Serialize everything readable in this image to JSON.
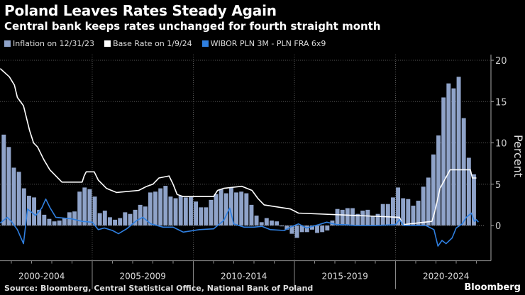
{
  "header": {
    "title": "Poland Leaves Rates Steady Again",
    "subtitle": "Central bank keeps rates unchanged for fourth straight month"
  },
  "footer": {
    "source": "Source: Bloomberg, Central Statistical Office, National Bank of Poland",
    "logo": "Bloomberg"
  },
  "chart_data": {
    "type": "bar+line",
    "ylabel": "Percent",
    "ylim": [
      -4,
      20
    ],
    "yticks": [
      0,
      5,
      10,
      15,
      20
    ],
    "xlim": [
      2000,
      2025
    ],
    "x_categories": [
      "2000-2004",
      "2005-2009",
      "2010-2014",
      "2015-2019",
      "2020-2024"
    ],
    "grid": true,
    "legend_placement": "top-left",
    "series": [
      {
        "name": "Inflation on 12/31/23",
        "kind": "bar",
        "color": "#8fa3c9",
        "x_start": 2000.5,
        "step": 0.25,
        "values": [
          11.0,
          9.5,
          7.0,
          6.5,
          4.5,
          3.6,
          3.4,
          1.9,
          1.3,
          0.8,
          0.5,
          0.6,
          0.9,
          1.6,
          1.7,
          4.1,
          4.6,
          4.4,
          3.5,
          1.5,
          1.8,
          1.0,
          0.7,
          0.9,
          1.6,
          1.4,
          1.9,
          2.5,
          2.3,
          4.0,
          4.1,
          4.5,
          4.8,
          3.5,
          3.3,
          3.6,
          3.4,
          3.5,
          2.9,
          2.2,
          2.2,
          3.1,
          3.8,
          4.4,
          3.9,
          4.6,
          4.0,
          4.1,
          3.9,
          2.5,
          1.2,
          0.4,
          0.9,
          0.6,
          0.5,
          -0.1,
          -0.5,
          -1.0,
          -1.5,
          -0.8,
          -0.8,
          -0.5,
          -0.9,
          -0.8,
          -0.6,
          0.6,
          2.0,
          1.9,
          2.1,
          2.1,
          1.4,
          1.8,
          1.9,
          1.1,
          1.4,
          2.6,
          2.6,
          3.4,
          4.6,
          3.3,
          3.2,
          2.4,
          3.0,
          4.7,
          5.8,
          8.6,
          10.9,
          15.5,
          17.2,
          16.6,
          18.0,
          13.0,
          8.2,
          6.2
        ]
      },
      {
        "name": "Base Rate on 1/9/24",
        "kind": "line",
        "color": "#ffffff",
        "points": [
          [
            2000.45,
            19
          ],
          [
            2000.9,
            18
          ],
          [
            2001.15,
            17
          ],
          [
            2001.3,
            15.5
          ],
          [
            2001.6,
            14.5
          ],
          [
            2001.9,
            11.5
          ],
          [
            2002.1,
            10
          ],
          [
            2002.3,
            9.5
          ],
          [
            2002.6,
            8
          ],
          [
            2002.9,
            6.75
          ],
          [
            2003.2,
            6.0
          ],
          [
            2003.5,
            5.25
          ],
          [
            2004.5,
            5.25
          ],
          [
            2004.6,
            6.0
          ],
          [
            2004.7,
            6.5
          ],
          [
            2005.1,
            6.5
          ],
          [
            2005.3,
            5.5
          ],
          [
            2005.7,
            4.5
          ],
          [
            2006.2,
            4.0
          ],
          [
            2007.3,
            4.25
          ],
          [
            2007.7,
            4.75
          ],
          [
            2008.0,
            5.0
          ],
          [
            2008.3,
            5.75
          ],
          [
            2008.8,
            6.0
          ],
          [
            2009.0,
            5.0
          ],
          [
            2009.2,
            3.75
          ],
          [
            2009.5,
            3.5
          ],
          [
            2011.0,
            3.5
          ],
          [
            2011.2,
            4.25
          ],
          [
            2011.5,
            4.5
          ],
          [
            2012.4,
            4.75
          ],
          [
            2012.9,
            4.25
          ],
          [
            2013.2,
            3.25
          ],
          [
            2013.5,
            2.5
          ],
          [
            2014.8,
            2.0
          ],
          [
            2015.2,
            1.5
          ],
          [
            2020.2,
            1.0
          ],
          [
            2020.35,
            0.1
          ],
          [
            2021.8,
            0.5
          ],
          [
            2021.95,
            1.75
          ],
          [
            2022.2,
            4.5
          ],
          [
            2022.7,
            6.75
          ],
          [
            2023.7,
            6.75
          ],
          [
            2023.8,
            5.75
          ],
          [
            2024.0,
            5.75
          ]
        ]
      },
      {
        "name": "WIBOR PLN 3M - PLN FRA 6x9",
        "kind": "line",
        "color": "#2f7fe0",
        "points": [
          [
            2000.45,
            0.3
          ],
          [
            2000.8,
            1.0
          ],
          [
            2001.0,
            0.5
          ],
          [
            2001.3,
            -0.5
          ],
          [
            2001.6,
            -2.2
          ],
          [
            2001.8,
            2.0
          ],
          [
            2002.0,
            1.6
          ],
          [
            2002.2,
            1.2
          ],
          [
            2002.5,
            2.1
          ],
          [
            2002.7,
            3.2
          ],
          [
            2002.9,
            2.2
          ],
          [
            2003.2,
            1.0
          ],
          [
            2004.0,
            0.8
          ],
          [
            2004.5,
            0.5
          ],
          [
            2005.0,
            0.4
          ],
          [
            2005.3,
            -0.5
          ],
          [
            2005.6,
            -0.3
          ],
          [
            2006.0,
            -0.6
          ],
          [
            2006.3,
            -1.0
          ],
          [
            2006.7,
            -0.4
          ],
          [
            2007.2,
            0.6
          ],
          [
            2007.5,
            1.0
          ],
          [
            2007.9,
            0.2
          ],
          [
            2008.5,
            -0.2
          ],
          [
            2009.0,
            -0.2
          ],
          [
            2009.5,
            -0.8
          ],
          [
            2010.3,
            -0.5
          ],
          [
            2011.0,
            -0.4
          ],
          [
            2011.5,
            0.6
          ],
          [
            2011.8,
            2.1
          ],
          [
            2012.0,
            0.2
          ],
          [
            2012.5,
            -0.2
          ],
          [
            2013.0,
            -0.2
          ],
          [
            2013.4,
            -0.1
          ],
          [
            2013.8,
            -0.5
          ],
          [
            2014.5,
            -0.6
          ],
          [
            2014.8,
            -0.2
          ],
          [
            2015.2,
            0.2
          ],
          [
            2015.6,
            -0.3
          ],
          [
            2016.2,
            0.1
          ],
          [
            2016.6,
            0.4
          ],
          [
            2017.1,
            0.1
          ],
          [
            2017.5,
            0.1
          ],
          [
            2018.0,
            0.0
          ],
          [
            2019.0,
            0.0
          ],
          [
            2020.0,
            0.1
          ],
          [
            2020.2,
            0.7
          ],
          [
            2020.4,
            0.0
          ],
          [
            2021.5,
            0.0
          ],
          [
            2021.9,
            -0.5
          ],
          [
            2022.1,
            -2.5
          ],
          [
            2022.3,
            -1.8
          ],
          [
            2022.5,
            -2.2
          ],
          [
            2022.8,
            -1.5
          ],
          [
            2023.0,
            -0.3
          ],
          [
            2023.3,
            0.2
          ],
          [
            2023.5,
            1.0
          ],
          [
            2023.75,
            1.5
          ],
          [
            2023.9,
            0.5
          ],
          [
            2024.0,
            0.7
          ],
          [
            2024.1,
            0.4
          ]
        ]
      }
    ]
  }
}
